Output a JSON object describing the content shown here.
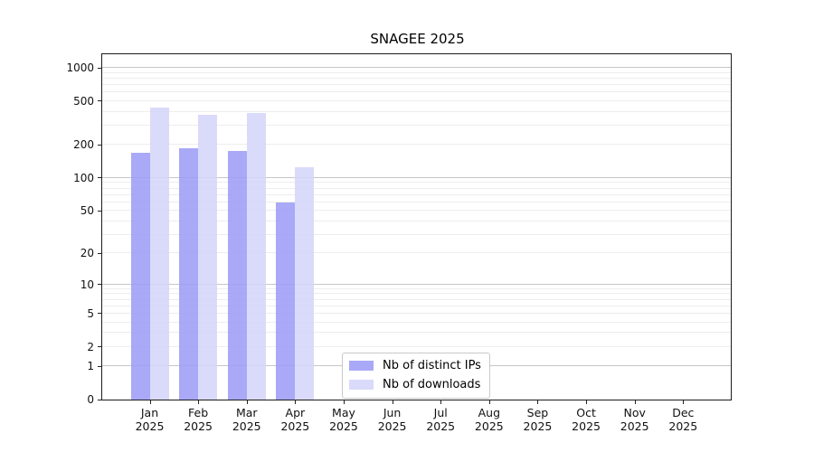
{
  "title": "SNAGEE 2025",
  "chart_data": {
    "type": "bar",
    "title": "SNAGEE 2025",
    "categories": [
      "Jan 2025",
      "Feb 2025",
      "Mar 2025",
      "Apr 2025",
      "May 2025",
      "Jun 2025",
      "Jul 2025",
      "Aug 2025",
      "Sep 2025",
      "Oct 2025",
      "Nov 2025",
      "Dec 2025"
    ],
    "series": [
      {
        "name": "Nb of distinct IPs",
        "color": "#9d9df7",
        "values": [
          170,
          185,
          175,
          60,
          0,
          0,
          0,
          0,
          0,
          0,
          0,
          0
        ]
      },
      {
        "name": "Nb of downloads",
        "color": "#d5d5f9",
        "values": [
          440,
          375,
          390,
          125,
          0,
          0,
          0,
          0,
          0,
          0,
          0,
          0
        ]
      }
    ],
    "xlabel": "",
    "ylabel": "",
    "yscale": "log1p",
    "yticks": [
      0,
      1,
      2,
      5,
      10,
      20,
      50,
      100,
      200,
      500,
      1000
    ],
    "ylim": [
      0,
      1327
    ],
    "grid": {
      "major": true,
      "minor": true
    },
    "legend_position": "lower center (inside axes)",
    "colors": {
      "major_grid": "#c6c6c6",
      "minor_grid": "#ededed",
      "spine": "#1c1c1c"
    }
  }
}
